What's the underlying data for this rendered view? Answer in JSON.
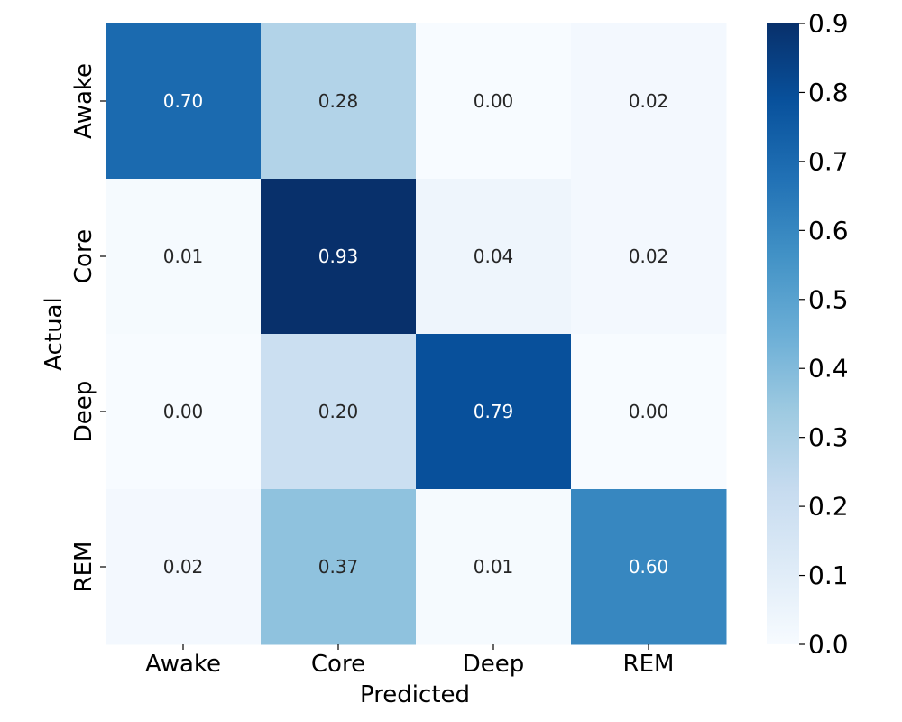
{
  "chart_data": {
    "type": "heatmap",
    "x_categories": [
      "Awake",
      "Core",
      "Deep",
      "REM"
    ],
    "y_categories": [
      "Awake",
      "Core",
      "Deep",
      "REM"
    ],
    "values": [
      [
        0.7,
        0.28,
        0.0,
        0.02
      ],
      [
        0.01,
        0.93,
        0.04,
        0.02
      ],
      [
        0.0,
        0.2,
        0.79,
        0.0
      ],
      [
        0.02,
        0.37,
        0.01,
        0.6
      ]
    ],
    "value_format": 2,
    "xlabel": "Predicted",
    "ylabel": "Actual",
    "colormap": "Blues",
    "colorbar": {
      "min": 0.0,
      "max": 0.9,
      "ticks": [
        "0.0",
        "0.1",
        "0.2",
        "0.3",
        "0.4",
        "0.5",
        "0.6",
        "0.7",
        "0.8",
        "0.9"
      ]
    }
  }
}
